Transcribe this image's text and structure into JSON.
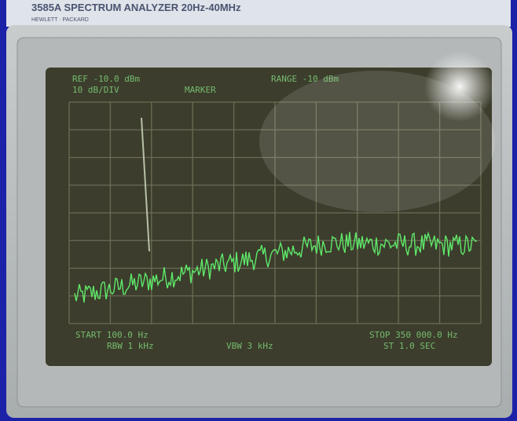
{
  "header": {
    "model": "3585A SPECTRUM ANALYZER 20Hz-40MHz",
    "brand": "HEWLETT · PACKARD"
  },
  "screen": {
    "ref": "REF -10.0 dBm",
    "scale": "10 dB/DIV",
    "marker": "MARKER",
    "range": "RANGE -10 dBm",
    "start": "START 100.0 Hz",
    "rbw": "RBW 1 kHz",
    "vbw": "VBW 3 kHz",
    "stop": "STOP 350 000.0 Hz",
    "sweep": "ST 1.0 SEC"
  }
}
